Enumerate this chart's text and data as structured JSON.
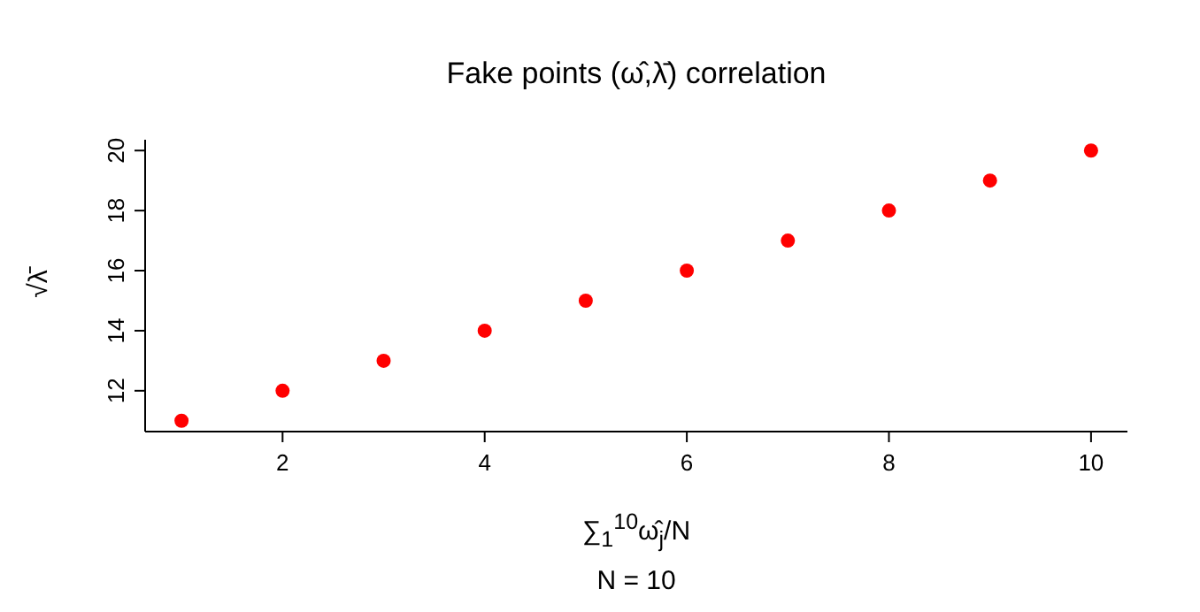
{
  "chart_data": {
    "type": "scatter",
    "title": "Fake points (ω̂,λ̄) correlation",
    "subtitle": "N = 10",
    "xlabel": "∑$_{1}$$^{10}$ω̂$_{j}$/N",
    "ylabel": "√λ̄",
    "x": [
      1,
      2,
      3,
      4,
      5,
      6,
      7,
      8,
      9,
      10
    ],
    "series": [
      {
        "color": "#ff0000",
        "values": [
          11,
          12,
          13,
          14,
          15,
          16,
          17,
          18,
          19,
          20
        ]
      }
    ],
    "xlim": [
      0.64,
      10.36
    ],
    "ylim": [
      10.64,
      20.36
    ],
    "xticks": [
      2,
      4,
      6,
      8,
      10
    ],
    "yticks": [
      12,
      14,
      16,
      18,
      20
    ],
    "marker": "circle",
    "grid": false,
    "legend": false
  }
}
